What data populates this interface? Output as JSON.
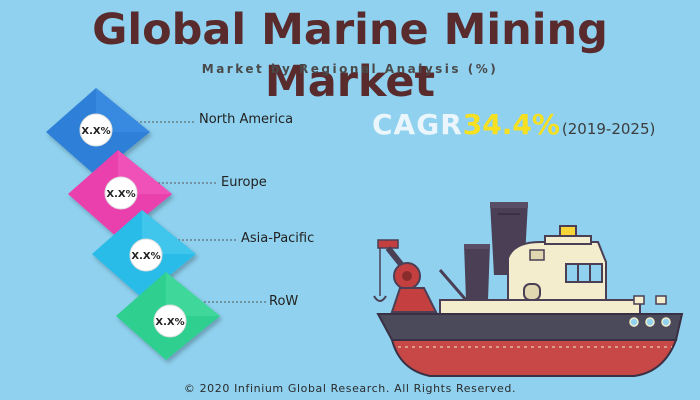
{
  "header": {
    "title": "Global Marine Mining Market",
    "subtitle": "Market by Regional Analysis (%)"
  },
  "cagr": {
    "label": "CAGR",
    "value": "34.4%",
    "period": "(2019-2025)"
  },
  "regions": [
    {
      "name": "North America",
      "share_label": "X.X%",
      "color": "#2f7fd7"
    },
    {
      "name": "Europe",
      "share_label": "X.X%",
      "color": "#ea3fae"
    },
    {
      "name": "Asia-Pacific",
      "share_label": "X.X%",
      "color": "#29bce8"
    },
    {
      "name": "RoW",
      "share_label": "X.X%",
      "color": "#2ecf8f"
    }
  ],
  "footer": {
    "copyright": "© 2020 Infinium Global Research. All Rights Reserved."
  },
  "colors": {
    "background": "#8fd1ef",
    "title": "#5a2b2d",
    "cagr_value": "#f6e020"
  }
}
